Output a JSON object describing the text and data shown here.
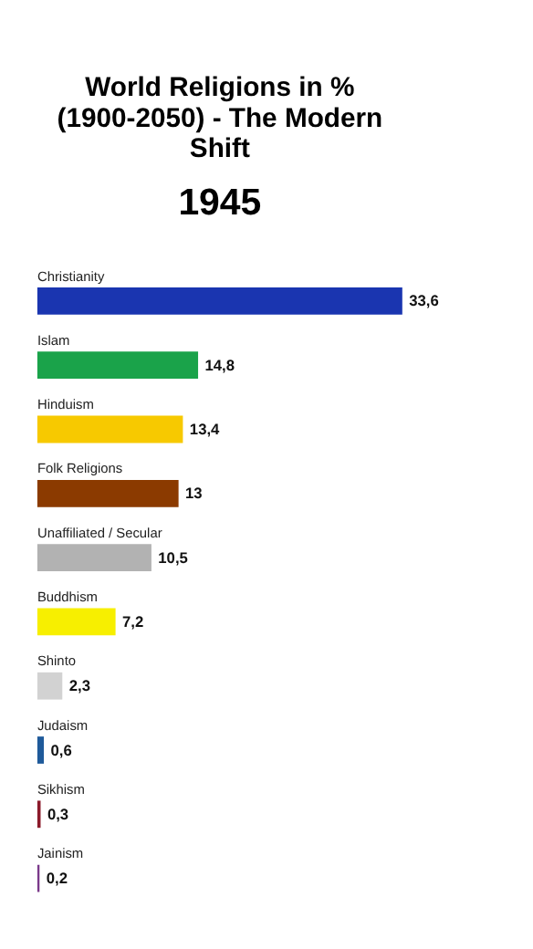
{
  "chart_data": {
    "type": "bar",
    "orientation": "horizontal",
    "title": "World Religions in % (1900-2050) - The Modern Shift",
    "subtitle": "1945",
    "categories": [
      "Christianity",
      "Islam",
      "Hinduism",
      "Folk Religions",
      "Unaffiliated / Secular",
      "Buddhism",
      "Shinto",
      "Judaism",
      "Sikhism",
      "Jainism"
    ],
    "values": [
      33.6,
      14.8,
      13.4,
      13,
      10.5,
      7.2,
      2.3,
      0.6,
      0.3,
      0.2
    ],
    "value_labels": [
      "33,6",
      "14,8",
      "13,4",
      "13",
      "10,5",
      "7,2",
      "2,3",
      "0,6",
      "0,3",
      "0,2"
    ],
    "colors": [
      "#1a35b0",
      "#1aa34a",
      "#f7c900",
      "#8b3a00",
      "#b2b2b2",
      "#f7ef00",
      "#d2d2d2",
      "#1f5a9a",
      "#8b1a2a",
      "#7a3a8a"
    ],
    "tick_labels": false
  }
}
